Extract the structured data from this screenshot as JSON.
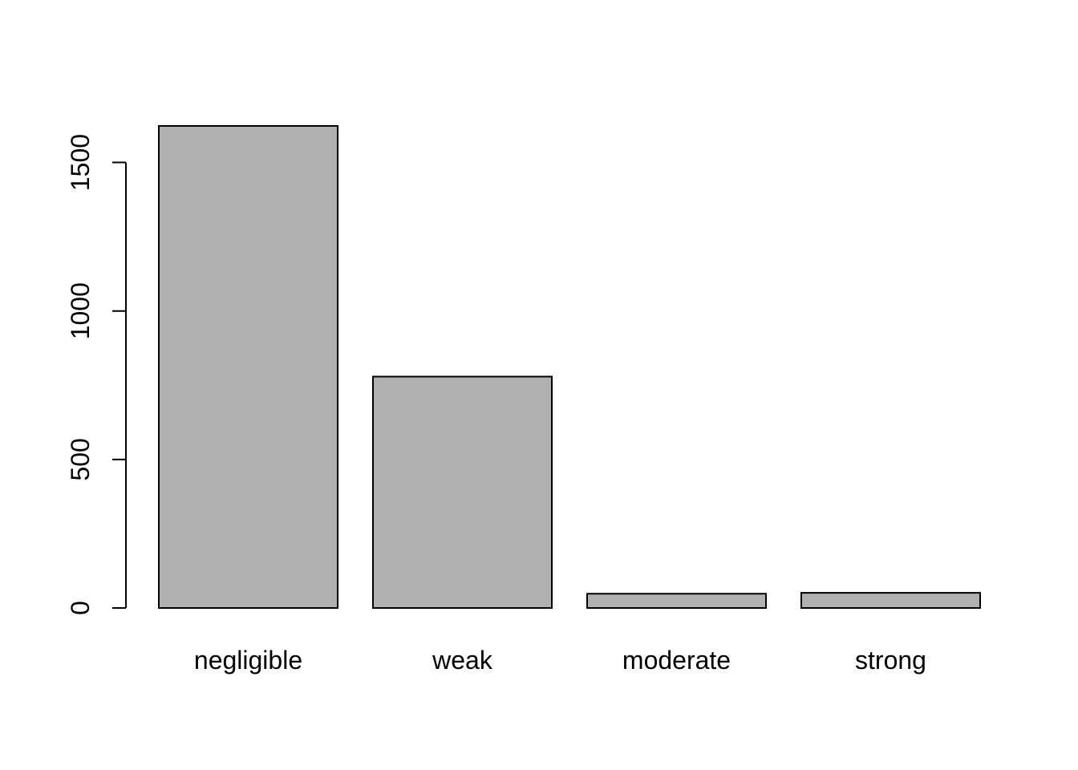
{
  "chart_data": {
    "type": "bar",
    "categories": [
      "negligible",
      "weak",
      "moderate",
      "strong"
    ],
    "values": [
      1623,
      779,
      48,
      51
    ],
    "title": "",
    "xlabel": "",
    "ylabel": "",
    "ylim": [
      0,
      1623
    ],
    "yticks": [
      0,
      500,
      1000,
      1500
    ],
    "bar_color": "#b0b0b0",
    "border_color": "#000000",
    "grid": false,
    "legend": "none"
  }
}
